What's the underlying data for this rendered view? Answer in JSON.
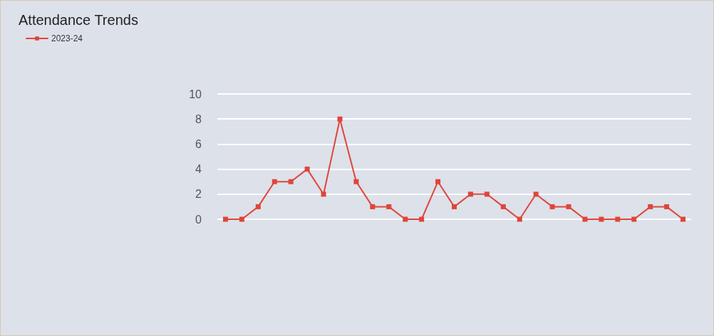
{
  "chart_data": {
    "type": "line",
    "title": "Attendance Trends",
    "categories": [
      null,
      null,
      null,
      null,
      null,
      null,
      null,
      null,
      null,
      null,
      null,
      null,
      null,
      null,
      null,
      null,
      null,
      null,
      null,
      null,
      null,
      null,
      null,
      null,
      null,
      null,
      null,
      null,
      null
    ],
    "series": [
      {
        "name": "2023-24",
        "color": "#e0453a",
        "values": [
          0,
          0,
          1,
          3,
          3,
          4,
          2,
          8,
          3,
          1,
          1,
          0,
          0,
          3,
          1,
          2,
          2,
          1,
          0,
          2,
          1,
          1,
          0,
          0,
          0,
          0,
          1,
          1,
          0
        ]
      }
    ],
    "ylim": [
      0,
      10
    ],
    "yticks": [
      0,
      2,
      4,
      6,
      8,
      10
    ],
    "grid": "y",
    "legend": "top left",
    "marker": "square",
    "line_style": "solid"
  }
}
